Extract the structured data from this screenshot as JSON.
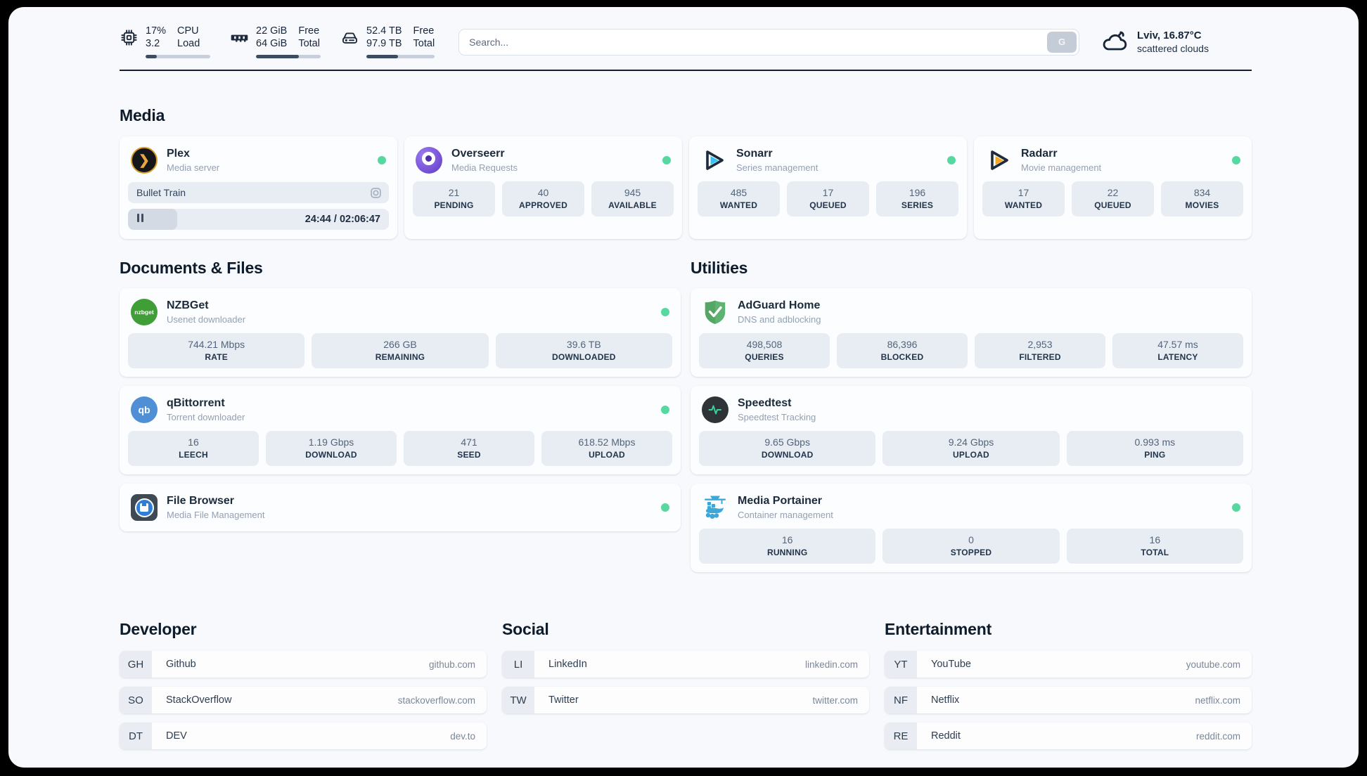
{
  "header": {
    "stats": [
      {
        "id": "cpu",
        "val1": "17%",
        "val2": "3.2",
        "lab1": "CPU",
        "lab2": "Load",
        "progress": 17
      },
      {
        "id": "ram",
        "val1": "22 GiB",
        "val2": "64 GiB",
        "lab1": "Free",
        "lab2": "Total",
        "progress": 66
      },
      {
        "id": "disk",
        "val1": "52.4 TB",
        "val2": "97.9 TB",
        "lab1": "Free",
        "lab2": "Total",
        "progress": 46
      }
    ],
    "search": {
      "placeholder": "Search...",
      "button_label": "G"
    },
    "weather": {
      "location_temp": "Lviv, 16.87°C",
      "condition": "scattered clouds"
    }
  },
  "media": {
    "title": "Media",
    "cards": [
      {
        "name": "Plex",
        "subtitle": "Media server",
        "online": true,
        "now_playing": "Bullet Train",
        "time": "24:44 / 02:06:47",
        "progress": 19
      },
      {
        "name": "Overseerr",
        "subtitle": "Media Requests",
        "online": true,
        "stats": [
          {
            "value": "21",
            "label": "PENDING"
          },
          {
            "value": "40",
            "label": "APPROVED"
          },
          {
            "value": "945",
            "label": "AVAILABLE"
          }
        ]
      },
      {
        "name": "Sonarr",
        "subtitle": "Series management",
        "online": true,
        "stats": [
          {
            "value": "485",
            "label": "WANTED"
          },
          {
            "value": "17",
            "label": "QUEUED"
          },
          {
            "value": "196",
            "label": "SERIES"
          }
        ]
      },
      {
        "name": "Radarr",
        "subtitle": "Movie management",
        "online": true,
        "stats": [
          {
            "value": "17",
            "label": "WANTED"
          },
          {
            "value": "22",
            "label": "QUEUED"
          },
          {
            "value": "834",
            "label": "MOVIES"
          }
        ]
      }
    ]
  },
  "documents": {
    "title": "Documents & Files",
    "cards": [
      {
        "name": "NZBGet",
        "subtitle": "Usenet downloader",
        "online": true,
        "icon_text": "nzbget",
        "stats": [
          {
            "value": "744.21 Mbps",
            "label": "RATE"
          },
          {
            "value": "266 GB",
            "label": "REMAINING"
          },
          {
            "value": "39.6 TB",
            "label": "DOWNLOADED"
          }
        ]
      },
      {
        "name": "qBittorrent",
        "subtitle": "Torrent downloader",
        "online": true,
        "icon_text": "qb",
        "stats": [
          {
            "value": "16",
            "label": "LEECH"
          },
          {
            "value": "1.19 Gbps",
            "label": "DOWNLOAD"
          },
          {
            "value": "471",
            "label": "SEED"
          },
          {
            "value": "618.52 Mbps",
            "label": "UPLOAD"
          }
        ]
      },
      {
        "name": "File Browser",
        "subtitle": "Media File Management",
        "online": true
      }
    ]
  },
  "utilities": {
    "title": "Utilities",
    "cards": [
      {
        "name": "AdGuard Home",
        "subtitle": "DNS and adblocking",
        "stats": [
          {
            "value": "498,508",
            "label": "QUERIES"
          },
          {
            "value": "86,396",
            "label": "BLOCKED"
          },
          {
            "value": "2,953",
            "label": "FILTERED"
          },
          {
            "value": "47.57 ms",
            "label": "LATENCY"
          }
        ]
      },
      {
        "name": "Speedtest",
        "subtitle": "Speedtest Tracking",
        "stats": [
          {
            "value": "9.65 Gbps",
            "label": "DOWNLOAD"
          },
          {
            "value": "9.24 Gbps",
            "label": "UPLOAD"
          },
          {
            "value": "0.993 ms",
            "label": "PING"
          }
        ]
      },
      {
        "name": "Media Portainer",
        "subtitle": "Container management",
        "online": true,
        "stats": [
          {
            "value": "16",
            "label": "RUNNING"
          },
          {
            "value": "0",
            "label": "STOPPED"
          },
          {
            "value": "16",
            "label": "TOTAL"
          }
        ]
      }
    ]
  },
  "links": {
    "developer": {
      "title": "Developer",
      "items": [
        {
          "abbr": "GH",
          "name": "Github",
          "url": "github.com"
        },
        {
          "abbr": "SO",
          "name": "StackOverflow",
          "url": "stackoverflow.com"
        },
        {
          "abbr": "DT",
          "name": "DEV",
          "url": "dev.to"
        }
      ]
    },
    "social": {
      "title": "Social",
      "items": [
        {
          "abbr": "LI",
          "name": "LinkedIn",
          "url": "linkedin.com"
        },
        {
          "abbr": "TW",
          "name": "Twitter",
          "url": "twitter.com"
        }
      ]
    },
    "entertainment": {
      "title": "Entertainment",
      "items": [
        {
          "abbr": "YT",
          "name": "YouTube",
          "url": "youtube.com"
        },
        {
          "abbr": "NF",
          "name": "Netflix",
          "url": "netflix.com"
        },
        {
          "abbr": "RE",
          "name": "Reddit",
          "url": "reddit.com"
        }
      ]
    }
  },
  "colors": {
    "status_online": "#57d8a1",
    "plex_amber": "#e8a83e",
    "sonarr_cyan": "#35c5f4",
    "radarr_amber": "#f5a623",
    "nzbget_green": "#3f9f36",
    "qbittorrent_blue": "#4e8fd5",
    "adguard_green": "#5fb370",
    "portainer_blue": "#3aa8d8"
  }
}
